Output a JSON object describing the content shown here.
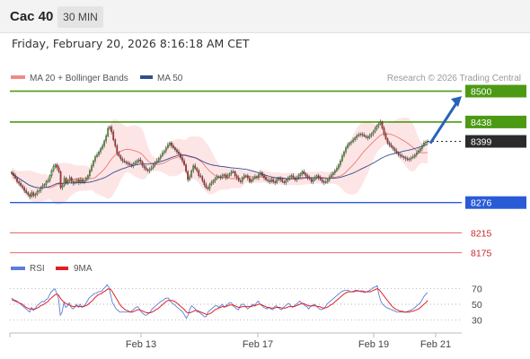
{
  "header": {
    "instrument": "Cac 40",
    "timeframe": "30 MIN"
  },
  "datetime": "Friday, February 20, 2026 8:16:18 AM CET",
  "legend": {
    "items": [
      {
        "label": "MA 20 + Bollinger Bands",
        "color": "#f08a8a"
      },
      {
        "label": "MA 50",
        "color": "#2f4f8f"
      }
    ],
    "credit": "Research © 2026 Trading Central"
  },
  "rsi_legend": {
    "items": [
      {
        "label": "RSI",
        "color": "#5b7fd6"
      },
      {
        "label": "9MA",
        "color": "#e02020"
      }
    ]
  },
  "colors": {
    "resistance": "#4c9a14",
    "support": "#2a5bd7",
    "target_support": "#e46a6a",
    "current_price": "#2b2b2b",
    "bullish_candle": "#5aa832",
    "bearish_candle": "#c62828",
    "bollinger_fill": "#fde2e2",
    "arrow": "#2762b8"
  },
  "chart_data": [
    {
      "type": "candlestick",
      "title": "",
      "x_ticks": [
        "Feb 13",
        "Feb 17",
        "Feb 19",
        "Feb 21"
      ],
      "ylim": [
        8160,
        8510
      ],
      "levels": [
        {
          "value": 8500,
          "label": "8500",
          "kind": "resistance"
        },
        {
          "value": 8438,
          "label": "8438",
          "kind": "resistance"
        },
        {
          "value": 8399,
          "label": "8399",
          "kind": "current"
        },
        {
          "value": 8276,
          "label": "8276",
          "kind": "support"
        },
        {
          "value": 8215,
          "label": "8215",
          "kind": "target"
        },
        {
          "value": 8175,
          "label": "8175",
          "kind": "target"
        }
      ],
      "projection": {
        "from": 8395,
        "to": 8490
      },
      "close": [
        8335,
        8330,
        8325,
        8318,
        8315,
        8310,
        8306,
        8300,
        8296,
        8292,
        8288,
        8296,
        8290,
        8292,
        8298,
        8300,
        8305,
        8310,
        8312,
        8318,
        8320,
        8330,
        8340,
        8348,
        8352,
        8346,
        8338,
        8306,
        8310,
        8325,
        8316,
        8320,
        8326,
        8318,
        8315,
        8318,
        8322,
        8316,
        8322,
        8318,
        8320,
        8324,
        8330,
        8340,
        8350,
        8360,
        8368,
        8372,
        8378,
        8384,
        8390,
        8400,
        8410,
        8425,
        8428,
        8418,
        8402,
        8390,
        8375,
        8370,
        8364,
        8360,
        8358,
        8356,
        8354,
        8352,
        8350,
        8354,
        8356,
        8360,
        8362,
        8358,
        8350,
        8346,
        8342,
        8340,
        8343,
        8346,
        8352,
        8356,
        8360,
        8365,
        8370,
        8376,
        8380,
        8386,
        8392,
        8396,
        8390,
        8386,
        8382,
        8378,
        8374,
        8366,
        8360,
        8352,
        8338,
        8322,
        8328,
        8340,
        8350,
        8345,
        8340,
        8330,
        8328,
        8320,
        8312,
        8306,
        8304,
        8312,
        8316,
        8320,
        8324,
        8328,
        8328,
        8326,
        8330,
        8332,
        8326,
        8330,
        8334,
        8338,
        8338,
        8330,
        8326,
        8320,
        8318,
        8325,
        8330,
        8330,
        8325,
        8318,
        8322,
        8325,
        8328,
        8326,
        8332,
        8336,
        8330,
        8326,
        8322,
        8320,
        8318,
        8322,
        8318,
        8316,
        8322,
        8325,
        8322,
        8318,
        8316,
        8320,
        8324,
        8328,
        8330,
        8326,
        8322,
        8326,
        8330,
        8334,
        8338,
        8334,
        8330,
        8326,
        8324,
        8318,
        8322,
        8326,
        8330,
        8326,
        8322,
        8318,
        8316,
        8318,
        8322,
        8328,
        8332,
        8336,
        8340,
        8345,
        8352,
        8360,
        8370,
        8378,
        8386,
        8392,
        8396,
        8398,
        8402,
        8406,
        8410,
        8412,
        8414,
        8412,
        8410,
        8408,
        8406,
        8410,
        8414,
        8418,
        8424,
        8430,
        8434,
        8438,
        8426,
        8414,
        8404,
        8396,
        8392,
        8388,
        8384,
        8380,
        8376,
        8372,
        8370,
        8368,
        8366,
        8364,
        8362,
        8364,
        8366,
        8368,
        8372,
        8376,
        8380,
        8384,
        8390,
        8396,
        8398,
        8399
      ]
    },
    {
      "type": "line",
      "title": "",
      "yticks": [
        70,
        50,
        30
      ],
      "ylim": [
        20,
        80
      ],
      "series": [
        {
          "name": "RSI",
          "values": [
            58,
            56,
            55,
            54,
            52,
            50,
            48,
            46,
            44,
            42,
            40,
            46,
            42,
            44,
            48,
            50,
            52,
            54,
            53,
            56,
            57,
            62,
            66,
            68,
            70,
            64,
            58,
            36,
            40,
            52,
            46,
            48,
            52,
            46,
            44,
            46,
            50,
            46,
            50,
            46,
            48,
            50,
            54,
            58,
            60,
            62,
            64,
            64,
            66,
            66,
            67,
            70,
            72,
            75,
            72,
            62,
            52,
            48,
            44,
            42,
            40,
            40,
            40,
            40,
            40,
            40,
            40,
            42,
            44,
            46,
            47,
            44,
            40,
            38,
            36,
            36,
            38,
            40,
            44,
            46,
            48,
            50,
            52,
            54,
            55,
            57,
            58,
            58,
            54,
            52,
            50,
            48,
            46,
            44,
            42,
            40,
            36,
            32,
            36,
            44,
            48,
            46,
            44,
            40,
            40,
            38,
            36,
            34,
            34,
            40,
            42,
            44,
            46,
            48,
            48,
            46,
            48,
            50,
            46,
            48,
            50,
            52,
            52,
            48,
            46,
            44,
            43,
            48,
            50,
            50,
            47,
            44,
            46,
            48,
            50,
            48,
            52,
            54,
            50,
            48,
            46,
            45,
            44,
            46,
            44,
            43,
            47,
            48,
            46,
            44,
            43,
            46,
            48,
            50,
            51,
            48,
            46,
            48,
            50,
            52,
            54,
            52,
            50,
            48,
            47,
            44,
            47,
            48,
            50,
            48,
            46,
            44,
            43,
            44,
            46,
            50,
            52,
            54,
            56,
            58,
            60,
            62,
            64,
            66,
            67,
            68,
            68,
            68,
            66,
            66,
            67,
            68,
            68,
            67,
            66,
            66,
            65,
            66,
            67,
            68,
            70,
            72,
            72,
            74,
            62,
            54,
            50,
            48,
            46,
            45,
            44,
            43,
            42,
            41,
            40,
            40,
            40,
            40,
            40,
            40,
            41,
            42,
            43,
            44,
            46,
            48,
            50,
            52,
            56,
            60,
            63,
            65
          ]
        },
        {
          "name": "9MA",
          "values": [
            56,
            55,
            54,
            53,
            52,
            51,
            50,
            48,
            46,
            45,
            44,
            44,
            44,
            44,
            45,
            46,
            48,
            49,
            50,
            52,
            53,
            56,
            58,
            60,
            62,
            63,
            62,
            58,
            55,
            53,
            51,
            50,
            49,
            48,
            47,
            47,
            48,
            47,
            47,
            47,
            47,
            48,
            49,
            51,
            53,
            55,
            58,
            60,
            62,
            63,
            64,
            66,
            67,
            69,
            70,
            69,
            66,
            62,
            58,
            54,
            50,
            47,
            45,
            43,
            42,
            41,
            40,
            40,
            41,
            42,
            43,
            43,
            42,
            41,
            40,
            39,
            39,
            39,
            40,
            41,
            43,
            44,
            46,
            48,
            50,
            52,
            54,
            55,
            55,
            55,
            54,
            53,
            51,
            49,
            47,
            45,
            43,
            40,
            39,
            39,
            40,
            41,
            42,
            42,
            41,
            40,
            39,
            38,
            37,
            37,
            38,
            39,
            41,
            43,
            44,
            45,
            46,
            47,
            47,
            47,
            48,
            49,
            49,
            49,
            48,
            47,
            46,
            46,
            47,
            47,
            47,
            47,
            47,
            47,
            48,
            48,
            49,
            50,
            50,
            49,
            48,
            47,
            46,
            46,
            45,
            45,
            45,
            46,
            46,
            46,
            45,
            45,
            45,
            46,
            47,
            47,
            47,
            47,
            48,
            49,
            50,
            51,
            51,
            50,
            49,
            48,
            48,
            48,
            48,
            48,
            47,
            47,
            46,
            45,
            45,
            46,
            47,
            49,
            50,
            52,
            54,
            56,
            58,
            60,
            62,
            64,
            65,
            66,
            66,
            66,
            66,
            67,
            67,
            67,
            67,
            67,
            66,
            66,
            66,
            66,
            67,
            68,
            69,
            70,
            69,
            66,
            63,
            60,
            57,
            54,
            51,
            48,
            46,
            44,
            43,
            42,
            41,
            41,
            40,
            40,
            40,
            40,
            41,
            41,
            42,
            43,
            44,
            46,
            48,
            50,
            52,
            55
          ]
        }
      ]
    }
  ]
}
